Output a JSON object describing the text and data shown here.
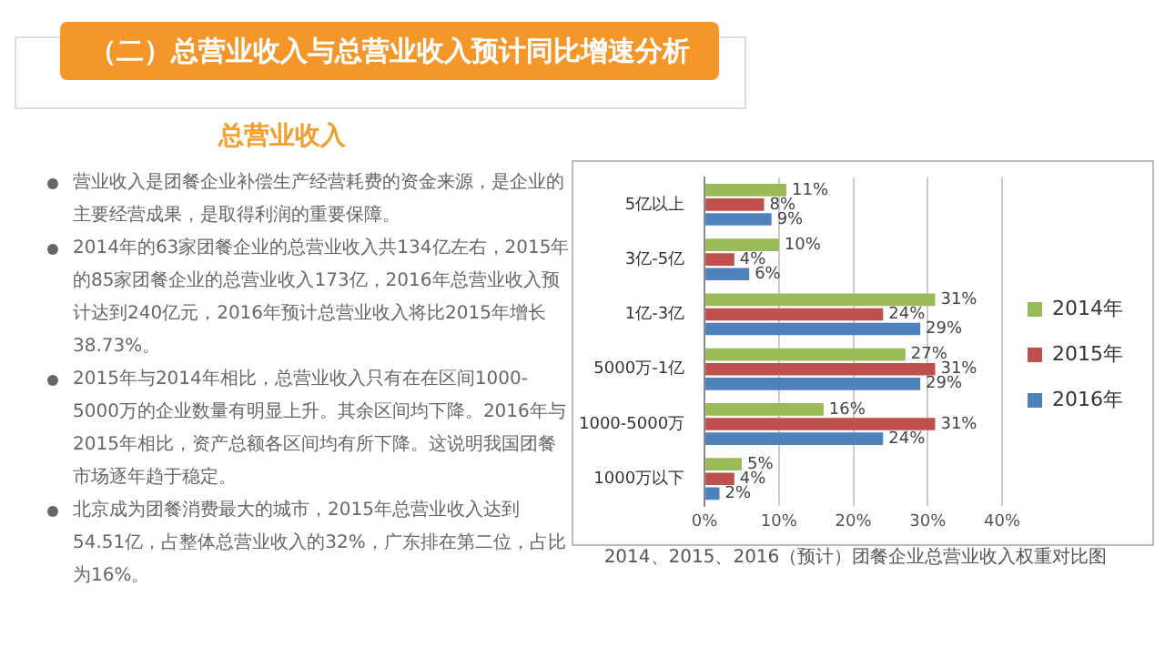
{
  "chart_data": {
    "type": "bar",
    "orientation": "horizontal",
    "title": "（二）总营业收入与总营业收入预计同比增速分析",
    "subtitle": "总营业收入",
    "xlabel": "2014、2015、2016（预计）团餐企业总营业收入权重对比图",
    "annotations": [
      "营业收入是团餐企业补偿生产经营耗费的资金来源，是企业的主要经营成果，是取得利润的重要保障。",
      "2014年的63家团餐企业的总营业收入共134亿左右，2015年的85家团餐企业的总营业收入173亿，2016年总营业收入预计达到240亿元，2016年预计总营业收入将比2015年增长38.73%。",
      "2015年与2014年相比，总营业收入只有在在区间1000-5000万的企业数量有明显上升。其余区间均下降。2016年与2015年相比，资产总额各区间均有所下降。这说明我国团餐市场逐年趋于稳定。",
      "北京成为团餐消费最大的城市，2015年总营业收入达到54.51亿，占整体总营业收入的32%，广东排在第二位，占比为16%。"
    ],
    "categories": [
      "5亿以上",
      "3亿-5亿",
      "1亿-3亿",
      "5000万-1亿",
      "1000-5000万",
      "1000万以下"
    ],
    "series": [
      {
        "name": "2014年",
        "color": "#9bbb59",
        "values": [
          11,
          10,
          31,
          27,
          16,
          5
        ],
        "value_labels": [
          "11%",
          "10%",
          "31%",
          "27%",
          "16%",
          "5%"
        ]
      },
      {
        "name": "2015年",
        "color": "#c0504d",
        "values": [
          8,
          4,
          24,
          31,
          31,
          4
        ],
        "value_labels": [
          "8%",
          "4%",
          "24%",
          "31%",
          "31%",
          "4%"
        ]
      },
      {
        "name": "2016年",
        "color": "#4f81bd",
        "values": [
          9,
          6,
          29,
          29,
          24,
          2
        ],
        "value_labels": [
          "9%",
          "6%",
          "29%",
          "29%",
          "24%",
          "2%"
        ]
      }
    ],
    "xlim": [
      0,
      40
    ],
    "xticks": [
      {
        "value": 0,
        "label": "0%"
      },
      {
        "value": 10,
        "label": "10%"
      },
      {
        "value": 20,
        "label": "20%"
      },
      {
        "value": 30,
        "label": "30%"
      },
      {
        "value": 40,
        "label": "40%"
      }
    ],
    "grid": "x",
    "legend": "right"
  }
}
